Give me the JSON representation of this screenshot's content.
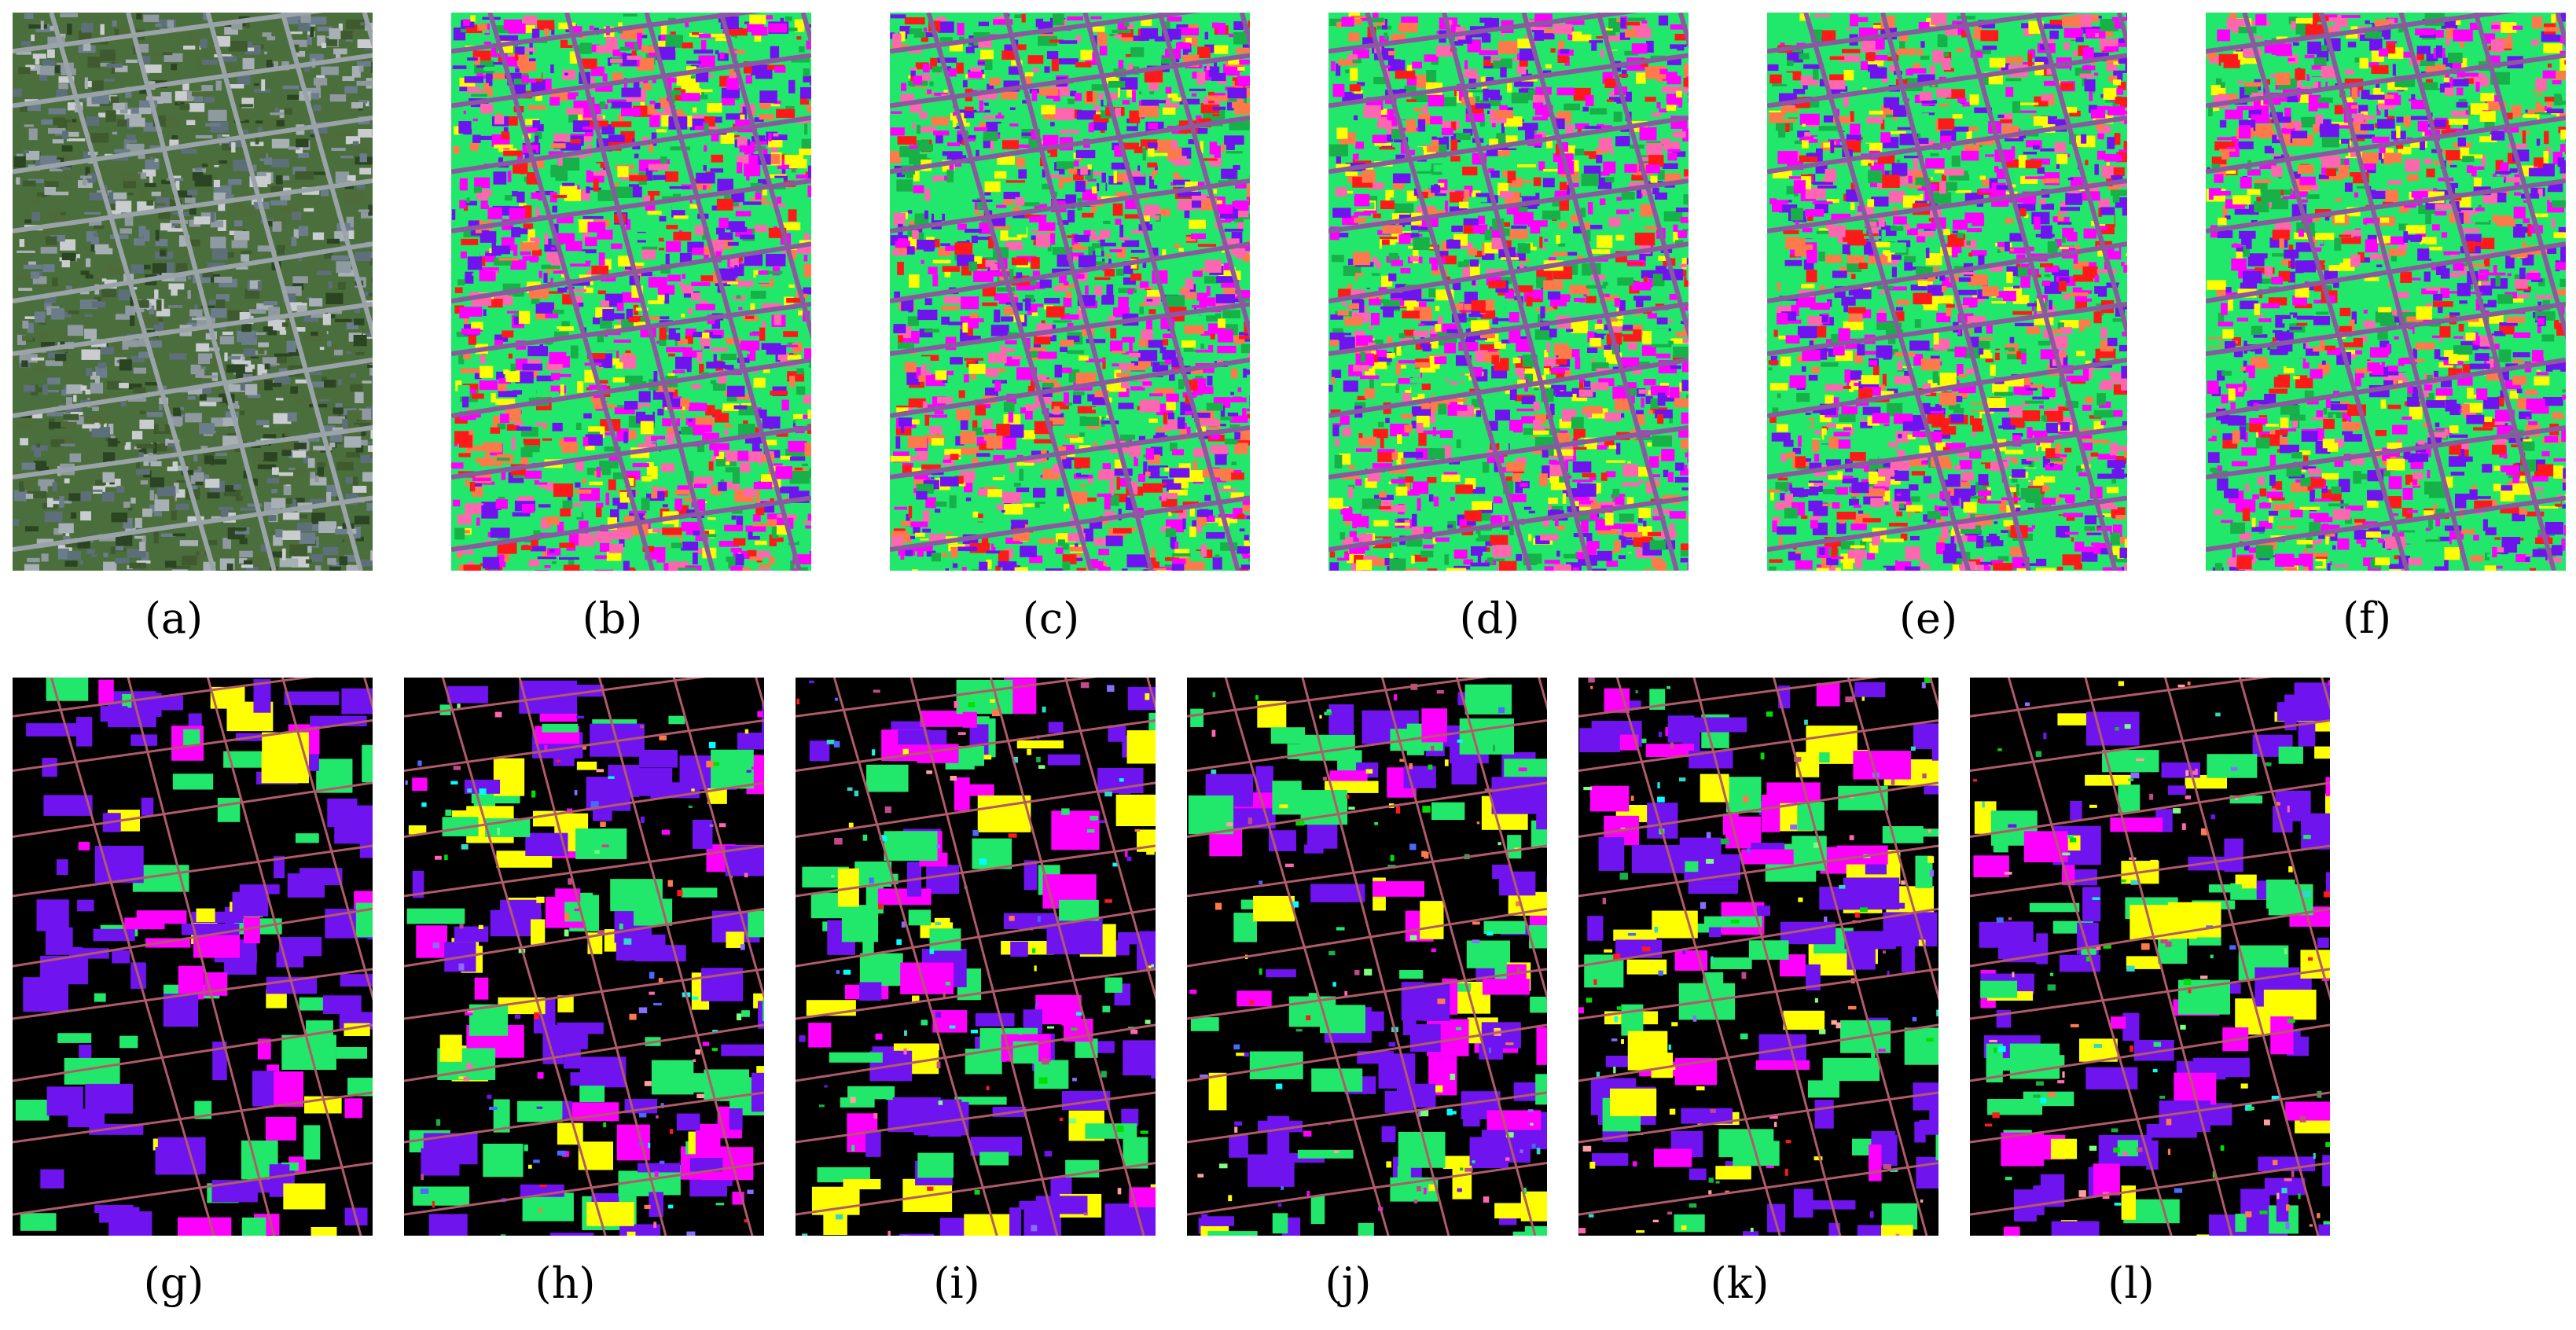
{
  "figure": {
    "top_row": {
      "panels": [
        {
          "label": "(a)",
          "content": "rgb-composite"
        },
        {
          "label": "(b)",
          "content": "classification-map"
        },
        {
          "label": "(c)",
          "content": "classification-map"
        },
        {
          "label": "(d)",
          "content": "classification-map"
        },
        {
          "label": "(e)",
          "content": "classification-map"
        },
        {
          "label": "(f)",
          "content": "classification-map"
        }
      ]
    },
    "bottom_row": {
      "panels": [
        {
          "label": "(g)",
          "content": "ground-truth-map"
        },
        {
          "label": "(h)",
          "content": "labeled-classification-map"
        },
        {
          "label": "(i)",
          "content": "labeled-classification-map"
        },
        {
          "label": "(j)",
          "content": "labeled-classification-map"
        },
        {
          "label": "(k)",
          "content": "labeled-classification-map"
        },
        {
          "label": "(l)",
          "content": "labeled-classification-map"
        }
      ]
    },
    "colors": {
      "class_palette": [
        "#6f14ee",
        "#21e86a",
        "#ff00ff",
        "#ff1a1a",
        "#ffff00",
        "#ff7a4a",
        "#2fd8c8",
        "#00ffff",
        "#18b048",
        "#8a6dff",
        "#ff66b0",
        "#00e000",
        "#4a6aff",
        "#c04a8a",
        "#ff9f9f",
        "#7fff7f"
      ],
      "background": "#000000",
      "rgb_ground": "#4a6f3c"
    }
  }
}
